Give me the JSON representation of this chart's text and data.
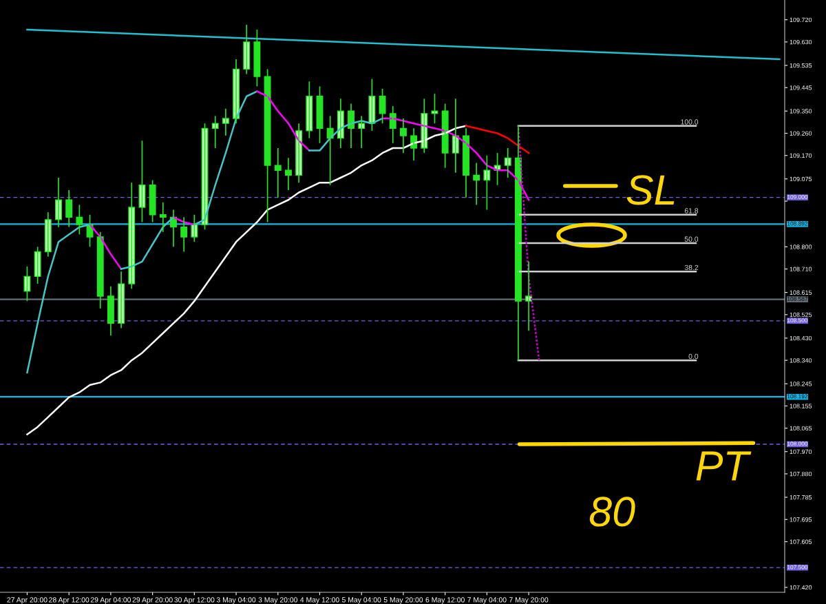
{
  "chart_data": {
    "type": "candlestick",
    "categories": [
      "27 Apr 20:00",
      null,
      null,
      null,
      "28 Apr 12:00",
      null,
      null,
      null,
      "29 Apr 04:00",
      null,
      null,
      null,
      "29 Apr 20:00",
      null,
      null,
      null,
      "30 Apr 12:00",
      null,
      null,
      null,
      "3 May 04:00",
      null,
      null,
      null,
      "3 May 20:00",
      null,
      null,
      null,
      "4 May 12:00",
      null,
      null,
      null,
      "5 May 04:00",
      null,
      null,
      null,
      "5 May 20:00",
      null,
      null,
      null,
      "6 May 12:00",
      null,
      null,
      null,
      "7 May 04:00",
      null,
      null,
      null,
      "7 May 20:00",
      null,
      null,
      null,
      null,
      null,
      null,
      null,
      null,
      null,
      null,
      null,
      null,
      null,
      null,
      null,
      null,
      null,
      null,
      null,
      null,
      null,
      null,
      null,
      null
    ],
    "series": [
      {
        "color": "#22e622",
        "ohlc": [
          [
            108.62,
            108.72,
            108.58,
            108.68
          ],
          [
            108.68,
            108.8,
            108.65,
            108.78
          ],
          [
            108.78,
            108.94,
            108.76,
            108.91
          ],
          [
            108.91,
            109.08,
            108.88,
            108.99
          ],
          [
            108.99,
            109.03,
            108.88,
            108.92
          ],
          [
            108.92,
            108.97,
            108.85,
            108.89
          ],
          [
            108.89,
            108.93,
            108.8,
            108.84
          ],
          [
            108.84,
            108.86,
            108.55,
            108.6
          ],
          [
            108.6,
            108.64,
            108.44,
            108.49
          ],
          [
            108.49,
            108.7,
            108.47,
            108.65
          ],
          [
            108.65,
            109.06,
            108.63,
            108.96
          ],
          [
            108.96,
            109.23,
            108.9,
            109.05
          ],
          [
            109.05,
            109.07,
            108.9,
            108.93
          ],
          [
            108.93,
            108.98,
            108.86,
            108.92
          ],
          [
            108.92,
            108.95,
            108.8,
            108.88
          ],
          [
            108.88,
            108.92,
            108.78,
            108.84
          ],
          [
            108.84,
            108.93,
            108.82,
            108.89
          ],
          [
            108.89,
            109.3,
            108.87,
            109.28
          ],
          [
            109.28,
            109.33,
            109.2,
            109.3
          ],
          [
            109.3,
            109.36,
            109.25,
            109.32
          ],
          [
            109.32,
            109.56,
            109.3,
            109.52
          ],
          [
            109.52,
            109.7,
            109.5,
            109.63
          ],
          [
            109.63,
            109.68,
            109.45,
            109.49
          ],
          [
            109.49,
            109.52,
            108.9,
            109.13
          ],
          [
            109.13,
            109.2,
            109.0,
            109.11
          ],
          [
            109.11,
            109.16,
            109.03,
            109.09
          ],
          [
            109.09,
            109.3,
            109.06,
            109.27
          ],
          [
            109.27,
            109.47,
            109.24,
            109.41
          ],
          [
            109.41,
            109.45,
            109.22,
            109.28
          ],
          [
            109.28,
            109.33,
            109.05,
            109.24
          ],
          [
            109.24,
            109.4,
            109.2,
            109.35
          ],
          [
            109.35,
            109.38,
            109.2,
            109.28
          ],
          [
            109.28,
            109.33,
            109.2,
            109.3
          ],
          [
            109.3,
            109.48,
            109.27,
            109.41
          ],
          [
            109.41,
            109.44,
            109.3,
            109.34
          ],
          [
            109.34,
            109.37,
            109.22,
            109.28
          ],
          [
            109.28,
            109.32,
            109.18,
            109.25
          ],
          [
            109.25,
            109.28,
            109.15,
            109.2
          ],
          [
            109.2,
            109.4,
            109.18,
            109.34
          ],
          [
            109.34,
            109.42,
            109.3,
            109.35
          ],
          [
            109.35,
            109.38,
            109.12,
            109.18
          ],
          [
            109.18,
            109.4,
            109.1,
            109.25
          ],
          [
            109.25,
            109.28,
            109.0,
            109.09
          ],
          [
            109.09,
            109.14,
            108.97,
            109.07
          ],
          [
            109.07,
            109.17,
            108.95,
            109.11
          ],
          [
            109.11,
            109.18,
            109.05,
            109.13
          ],
          [
            109.13,
            109.2,
            109.08,
            109.16
          ],
          [
            109.16,
            109.29,
            108.34,
            108.58
          ],
          [
            108.58,
            108.74,
            108.46,
            108.6
          ],
          null,
          null,
          null,
          null,
          null,
          null,
          null,
          null,
          null,
          null,
          null,
          null,
          null,
          null,
          null,
          null,
          null,
          null,
          null,
          null,
          null,
          null,
          null,
          null
        ]
      },
      {
        "type": "line",
        "color": "#40c8c8",
        "values": [
          108.29,
          108.49,
          108.68,
          108.82,
          108.85,
          108.88,
          108.89,
          null,
          null,
          null,
          null,
          null,
          null,
          null,
          null,
          null,
          null,
          null,
          null,
          null,
          null,
          null,
          null,
          null,
          null,
          null,
          null,
          null,
          null,
          null,
          null,
          null,
          null,
          null,
          null,
          null,
          null,
          null,
          null,
          null,
          null,
          null,
          null,
          null,
          null,
          null,
          null,
          null,
          null,
          null,
          null,
          null,
          null,
          null,
          null,
          null,
          null,
          null,
          null,
          null,
          null,
          null,
          null,
          null,
          null,
          null,
          null,
          null,
          null,
          null,
          null,
          null,
          null
        ]
      },
      {
        "type": "line",
        "color": "#ff00ff",
        "values": [
          null,
          null,
          null,
          null,
          null,
          null,
          108.89,
          108.84,
          108.77,
          108.71,
          null,
          null,
          null,
          null,
          null,
          null,
          null,
          null,
          null,
          null,
          null,
          null,
          null,
          null,
          null,
          null,
          null,
          null,
          null,
          null,
          null,
          null,
          null,
          null,
          null,
          null,
          null,
          null,
          null,
          null,
          null,
          null,
          null,
          null,
          null,
          null,
          null,
          null,
          null,
          null,
          null,
          null,
          null,
          null,
          null,
          null,
          null,
          null,
          null,
          null,
          null,
          null,
          null,
          null,
          null,
          null,
          null,
          null,
          null,
          null,
          null,
          null,
          null
        ]
      },
      {
        "type": "line",
        "color": "#40c8c8",
        "values": [
          null,
          null,
          null,
          null,
          null,
          null,
          null,
          null,
          null,
          108.71,
          108.72,
          108.74,
          108.81,
          108.88,
          108.92,
          null,
          null,
          null,
          null,
          null,
          null,
          null,
          null,
          null,
          null,
          null,
          null,
          null,
          null,
          null,
          null,
          null,
          null,
          null,
          null,
          null,
          null,
          null,
          null,
          null,
          null,
          null,
          null,
          null,
          null,
          null,
          null,
          null,
          null,
          null,
          null,
          null,
          null,
          null,
          null,
          null,
          null,
          null,
          null,
          null,
          null,
          null,
          null,
          null,
          null,
          null,
          null,
          null,
          null,
          null,
          null,
          null,
          null
        ]
      },
      {
        "type": "line",
        "color": "#ff00ff",
        "values": [
          null,
          null,
          null,
          null,
          null,
          null,
          null,
          null,
          null,
          null,
          null,
          null,
          null,
          null,
          108.92,
          108.9,
          108.89,
          null,
          null,
          null,
          null,
          null,
          null,
          null,
          null,
          null,
          null,
          null,
          null,
          null,
          null,
          null,
          null,
          null,
          null,
          null,
          null,
          null,
          null,
          null,
          null,
          null,
          null,
          null,
          null,
          null,
          null,
          null,
          null,
          null,
          null,
          null,
          null,
          null,
          null,
          null,
          null,
          null,
          null,
          null,
          null,
          null,
          null,
          null,
          null,
          null,
          null,
          null,
          null,
          null,
          null,
          null,
          null
        ]
      },
      {
        "type": "line",
        "color": "#40c8c8",
        "values": [
          null,
          null,
          null,
          null,
          null,
          null,
          null,
          null,
          null,
          null,
          null,
          null,
          null,
          null,
          null,
          null,
          108.89,
          108.91,
          109.05,
          109.18,
          109.32,
          109.41,
          109.43,
          null,
          null,
          null,
          null,
          null,
          null,
          null,
          null,
          null,
          null,
          null,
          null,
          null,
          null,
          null,
          null,
          null,
          null,
          null,
          null,
          null,
          null,
          null,
          null,
          null,
          null,
          null,
          null,
          null,
          null,
          null,
          null,
          null,
          null,
          null,
          null,
          null,
          null,
          null,
          null,
          null,
          null,
          null,
          null,
          null,
          null,
          null,
          null,
          null,
          null
        ]
      },
      {
        "type": "line",
        "color": "#ff00ff",
        "values": [
          null,
          null,
          null,
          null,
          null,
          null,
          null,
          null,
          null,
          null,
          null,
          null,
          null,
          null,
          null,
          null,
          null,
          null,
          null,
          null,
          null,
          null,
          109.43,
          109.41,
          109.35,
          109.3,
          109.23,
          109.19,
          null,
          null,
          null,
          null,
          null,
          null,
          null,
          null,
          null,
          null,
          null,
          null,
          null,
          null,
          null,
          null,
          null,
          null,
          null,
          null,
          null,
          null,
          null,
          null,
          null,
          null,
          null,
          null,
          null,
          null,
          null,
          null,
          null,
          null,
          null,
          null,
          null,
          null,
          null,
          null,
          null,
          null,
          null,
          null,
          null
        ]
      },
      {
        "type": "line",
        "color": "#40c8c8",
        "values": [
          null,
          null,
          null,
          null,
          null,
          null,
          null,
          null,
          null,
          null,
          null,
          null,
          null,
          null,
          null,
          null,
          null,
          null,
          null,
          null,
          null,
          null,
          null,
          null,
          null,
          null,
          null,
          109.19,
          109.19,
          109.24,
          109.28,
          109.3,
          109.31,
          109.3,
          109.32,
          null,
          null,
          null,
          null,
          null,
          null,
          null,
          null,
          null,
          null,
          null,
          null,
          null,
          null,
          null,
          null,
          null,
          null,
          null,
          null,
          null,
          null,
          null,
          null,
          null,
          null,
          null,
          null,
          null,
          null,
          null,
          null,
          null,
          null,
          null,
          null,
          null,
          null
        ]
      },
      {
        "type": "line",
        "color": "#ff00ff",
        "values": [
          null,
          null,
          null,
          null,
          null,
          null,
          null,
          null,
          null,
          null,
          null,
          null,
          null,
          null,
          null,
          null,
          null,
          null,
          null,
          null,
          null,
          null,
          null,
          null,
          null,
          null,
          null,
          null,
          null,
          null,
          null,
          null,
          null,
          null,
          109.32,
          109.32,
          109.31,
          109.3,
          109.29,
          109.28,
          109.27,
          109.25,
          109.22,
          109.18,
          109.13,
          109.11,
          109.11,
          109.07,
          108.99,
          null,
          null,
          null,
          null,
          null,
          null,
          null,
          null,
          null,
          null,
          null,
          null,
          null,
          null,
          null,
          null,
          null,
          null,
          null,
          null,
          null,
          null,
          null,
          null
        ]
      },
      {
        "type": "line",
        "color": "#ffffff",
        "values": [
          108.04,
          108.07,
          108.11,
          108.15,
          108.19,
          108.21,
          108.24,
          108.25,
          108.28,
          108.3,
          108.34,
          108.37,
          108.41,
          108.45,
          108.49,
          108.53,
          108.58,
          108.64,
          108.7,
          108.76,
          108.82,
          108.86,
          108.9,
          108.95,
          108.97,
          108.99,
          109.02,
          109.04,
          109.06,
          109.06,
          109.08,
          109.1,
          109.13,
          109.15,
          109.18,
          109.2,
          109.2,
          109.22,
          109.23,
          109.25,
          109.26,
          109.28,
          109.29,
          null,
          null,
          null,
          null,
          null,
          null,
          null,
          null,
          null,
          null,
          null,
          null,
          null,
          null,
          null,
          null,
          null,
          null,
          null,
          null,
          null,
          null,
          null,
          null,
          null,
          null,
          null,
          null,
          null,
          null
        ]
      },
      {
        "type": "line",
        "color": "#ff0000",
        "values": [
          null,
          null,
          null,
          null,
          null,
          null,
          null,
          null,
          null,
          null,
          null,
          null,
          null,
          null,
          null,
          null,
          null,
          null,
          null,
          null,
          null,
          null,
          null,
          null,
          null,
          null,
          null,
          null,
          null,
          null,
          null,
          null,
          null,
          null,
          null,
          null,
          null,
          null,
          null,
          null,
          null,
          null,
          109.29,
          109.28,
          109.27,
          109.26,
          109.24,
          109.21,
          109.18,
          null,
          null,
          null,
          null,
          null,
          null,
          null,
          null,
          null,
          null,
          null,
          null,
          null,
          null,
          null,
          null,
          null,
          null,
          null,
          null,
          null,
          null,
          null,
          null
        ]
      },
      {
        "type": "line",
        "color": "#20c0d0",
        "values": [
          109.68,
          null,
          null,
          null,
          null,
          null,
          null,
          null,
          null,
          null,
          null,
          null,
          null,
          null,
          null,
          null,
          null,
          null,
          null,
          null,
          null,
          null,
          null,
          null,
          null,
          null,
          null,
          null,
          null,
          null,
          null,
          null,
          null,
          null,
          null,
          null,
          null,
          null,
          null,
          null,
          null,
          null,
          null,
          null,
          null,
          null,
          null,
          null,
          null,
          null,
          null,
          null,
          null,
          null,
          null,
          null,
          null,
          null,
          null,
          null,
          null,
          null,
          null,
          null,
          null,
          null,
          null,
          null,
          null,
          null,
          null,
          null,
          109.56
        ]
      },
      {
        "type": "line",
        "color": "#d0d0d0",
        "values": [
          null,
          null,
          null,
          null,
          null,
          null,
          null,
          null,
          null,
          null,
          null,
          null,
          null,
          null,
          null,
          null,
          null,
          null,
          null,
          null,
          null,
          null,
          null,
          null,
          null,
          null,
          null,
          null,
          null,
          null,
          null,
          null,
          null,
          null,
          null,
          null,
          null,
          null,
          null,
          null,
          null,
          null,
          null,
          null,
          null,
          null,
          null,
          109.29,
          null,
          null,
          null,
          null,
          null,
          null,
          null,
          null,
          null,
          null,
          null,
          null,
          null,
          null,
          null,
          null,
          109.29,
          null,
          null,
          null,
          null,
          null,
          null,
          null,
          null
        ]
      },
      {
        "type": "line",
        "color": "#d0d0d0",
        "values": [
          null,
          null,
          null,
          null,
          null,
          null,
          null,
          null,
          null,
          null,
          null,
          null,
          null,
          null,
          null,
          null,
          null,
          null,
          null,
          null,
          null,
          null,
          null,
          null,
          null,
          null,
          null,
          null,
          null,
          null,
          null,
          null,
          null,
          null,
          null,
          null,
          null,
          null,
          null,
          null,
          null,
          null,
          null,
          null,
          null,
          null,
          null,
          108.93,
          null,
          null,
          null,
          null,
          null,
          null,
          null,
          null,
          null,
          null,
          null,
          null,
          null,
          null,
          null,
          null,
          108.93,
          null,
          null,
          null,
          null,
          null,
          null,
          null,
          null
        ]
      },
      {
        "type": "line",
        "color": "#d0d0d0",
        "values": [
          null,
          null,
          null,
          null,
          null,
          null,
          null,
          null,
          null,
          null,
          null,
          null,
          null,
          null,
          null,
          null,
          null,
          null,
          null,
          null,
          null,
          null,
          null,
          null,
          null,
          null,
          null,
          null,
          null,
          null,
          null,
          null,
          null,
          null,
          null,
          null,
          null,
          null,
          null,
          null,
          null,
          null,
          null,
          null,
          null,
          null,
          null,
          108.815,
          null,
          null,
          null,
          null,
          null,
          null,
          null,
          null,
          null,
          null,
          null,
          null,
          null,
          null,
          null,
          null,
          108.815,
          null,
          null,
          null,
          null,
          null,
          null,
          null,
          null
        ]
      },
      {
        "type": "line",
        "color": "#d0d0d0",
        "values": [
          null,
          null,
          null,
          null,
          null,
          null,
          null,
          null,
          null,
          null,
          null,
          null,
          null,
          null,
          null,
          null,
          null,
          null,
          null,
          null,
          null,
          null,
          null,
          null,
          null,
          null,
          null,
          null,
          null,
          null,
          null,
          null,
          null,
          null,
          null,
          null,
          null,
          null,
          null,
          null,
          null,
          null,
          null,
          null,
          null,
          null,
          null,
          108.7,
          null,
          null,
          null,
          null,
          null,
          null,
          null,
          null,
          null,
          null,
          null,
          null,
          null,
          null,
          null,
          null,
          108.7,
          null,
          null,
          null,
          null,
          null,
          null,
          null,
          null
        ]
      },
      {
        "type": "line",
        "color": "#d0d0d0",
        "values": [
          null,
          null,
          null,
          null,
          null,
          null,
          null,
          null,
          null,
          null,
          null,
          null,
          null,
          null,
          null,
          null,
          null,
          null,
          null,
          null,
          null,
          null,
          null,
          null,
          null,
          null,
          null,
          null,
          null,
          null,
          null,
          null,
          null,
          null,
          null,
          null,
          null,
          null,
          null,
          null,
          null,
          null,
          null,
          null,
          null,
          null,
          null,
          108.34,
          null,
          null,
          null,
          null,
          null,
          null,
          null,
          null,
          null,
          null,
          null,
          null,
          null,
          null,
          null,
          null,
          108.34,
          null,
          null,
          null,
          null,
          null,
          null,
          null,
          null
        ]
      },
      {
        "type": "line",
        "color": "#cc00cc",
        "line_style": "dotted",
        "values": [
          null,
          null,
          null,
          null,
          null,
          null,
          null,
          null,
          null,
          null,
          null,
          null,
          null,
          null,
          null,
          null,
          null,
          null,
          null,
          null,
          null,
          null,
          null,
          null,
          null,
          null,
          null,
          null,
          null,
          null,
          null,
          null,
          null,
          null,
          null,
          null,
          null,
          null,
          null,
          null,
          null,
          null,
          null,
          null,
          null,
          null,
          null,
          109.29,
          108.68,
          108.34,
          null,
          null,
          null,
          null,
          null,
          null,
          null,
          null,
          null,
          null,
          null,
          null,
          null,
          null,
          null,
          null,
          null,
          null,
          null,
          null,
          null,
          null,
          null
        ]
      }
    ],
    "ylim": [
      107.4,
      109.8
    ],
    "yticks": [
      {
        "value": 109.72,
        "label": "109.720"
      },
      {
        "value": 109.63,
        "label": "109.630"
      },
      {
        "value": 109.535,
        "label": "109.535"
      },
      {
        "value": 109.445,
        "label": "109.445"
      },
      {
        "value": 109.35,
        "label": "109.350"
      },
      {
        "value": 109.26,
        "label": "109.260"
      },
      {
        "value": 109.17,
        "label": "109.170"
      },
      {
        "value": 109.075,
        "label": "109.075"
      },
      {
        "value": 108.985,
        "label": null
      },
      {
        "value": 108.8,
        "label": "108.800"
      },
      {
        "value": 108.71,
        "label": "108.710"
      },
      {
        "value": 108.615,
        "label": "108.615"
      },
      {
        "value": 108.525,
        "label": "108.525"
      },
      {
        "value": 108.43,
        "label": "108.430"
      },
      {
        "value": 108.34,
        "label": "108.340"
      },
      {
        "value": 108.245,
        "label": "108.245"
      },
      {
        "value": 108.155,
        "label": "108.155"
      },
      {
        "value": 108.065,
        "label": "108.065"
      },
      {
        "value": 107.97,
        "label": "107.970"
      },
      {
        "value": 107.88,
        "label": "107.880"
      },
      {
        "value": 107.785,
        "label": "107.785"
      },
      {
        "value": 107.695,
        "label": "107.695"
      },
      {
        "value": 107.605,
        "label": "107.605"
      },
      {
        "value": 107.42,
        "label": "107.420"
      }
    ],
    "ref_lines": [
      {
        "axis": "y",
        "value": 109.0,
        "label": "109.000",
        "color": "#7060e0",
        "line_style": "dashed"
      },
      {
        "axis": "y",
        "value": 108.892,
        "label": "108.892",
        "color": "#10b8e8",
        "line_style": "solid"
      },
      {
        "axis": "y",
        "value": 108.587,
        "label": "108.587",
        "color": "#607078",
        "line_style": "solid"
      },
      {
        "axis": "y",
        "value": 108.5,
        "label": "108.500",
        "color": "#7060e0",
        "line_style": "dashed"
      },
      {
        "axis": "y",
        "value": 108.192,
        "label": "108.192",
        "color": "#10b8e8",
        "line_style": "solid"
      },
      {
        "axis": "y",
        "value": 108.0,
        "label": "108.000",
        "color": "#7060e0",
        "line_style": "dashed"
      },
      {
        "axis": "y",
        "value": 107.5,
        "label": "107.500",
        "color": "#7060e0",
        "line_style": "dashed"
      }
    ],
    "annotations": [
      {
        "text": "100.0",
        "y": 109.29
      },
      {
        "text": "61.8",
        "y": 108.93
      },
      {
        "text": "50.0",
        "y": 108.815
      },
      {
        "text": "38.2",
        "y": 108.7
      },
      {
        "text": "0.0",
        "y": 108.34
      },
      {
        "text": "SL",
        "y": 109.0
      },
      {
        "text": "PT",
        "y": 108.0
      },
      "80"
    ],
    "grid": false
  }
}
